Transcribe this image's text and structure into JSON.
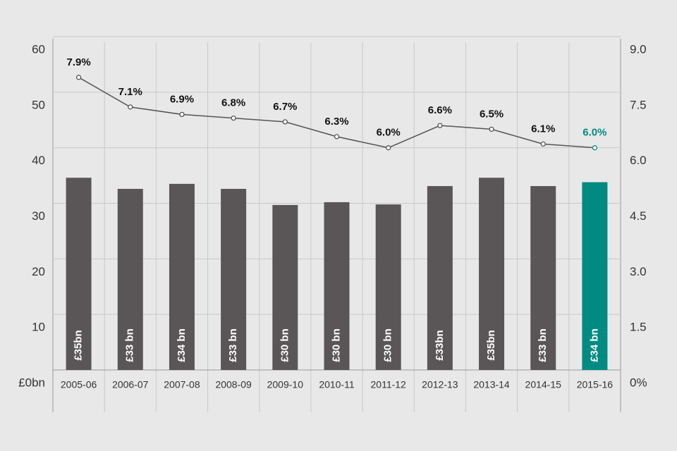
{
  "chart_data": {
    "type": "bar",
    "categories": [
      "2005-06",
      "2006-07",
      "2007-08",
      "2008-09",
      "2009-10",
      "2010-11",
      "2011-12",
      "2012-13",
      "2013-14",
      "2014-15",
      "2015-16"
    ],
    "series": [
      {
        "type": "bar",
        "values": [
          34.6,
          32.6,
          33.5,
          32.6,
          29.7,
          30.2,
          29.8,
          33.1,
          34.6,
          33.1,
          33.8
        ],
        "value_labels": [
          "£35bn",
          "£33 bn",
          "£34 bn",
          "£33 bn",
          "£30 bn",
          "£30 bn",
          "£30 bn",
          "£33bn",
          "£35bn",
          "£33 bn",
          "£34 bn"
        ],
        "colors": [
          "#5a5657",
          "#5a5657",
          "#5a5657",
          "#5a5657",
          "#5a5657",
          "#5a5657",
          "#5a5657",
          "#5a5657",
          "#5a5657",
          "#5a5657",
          "#008b82"
        ]
      },
      {
        "type": "line",
        "axis": "y2",
        "values": [
          7.9,
          7.1,
          6.9,
          6.8,
          6.7,
          6.3,
          6.0,
          6.6,
          6.5,
          6.1,
          6.0
        ],
        "value_labels": [
          "7.9%",
          "7.1%",
          "6.9%",
          "6.8%",
          "6.7%",
          "6.3%",
          "6.0%",
          "6.6%",
          "6.5%",
          "6.1%",
          "6.0%"
        ],
        "color": "#555555",
        "label_colors": [
          "#111111",
          "#111111",
          "#111111",
          "#111111",
          "#111111",
          "#111111",
          "#111111",
          "#111111",
          "#111111",
          "#111111",
          "#008b82"
        ]
      }
    ],
    "ylim": [
      0,
      60
    ],
    "yticks": [
      {
        "value": 0,
        "label": "£0bn"
      },
      10,
      20,
      30,
      40,
      50,
      60
    ],
    "y2lim": [
      0,
      9
    ],
    "y2ticks": [
      {
        "value": 0,
        "label": "0%"
      },
      1.5,
      {
        "value": 3,
        "label": "3.0"
      },
      4.5,
      {
        "value": 6,
        "label": "6.0"
      },
      7.5,
      {
        "value": 9,
        "label": "9.0"
      }
    ],
    "grid": true
  }
}
